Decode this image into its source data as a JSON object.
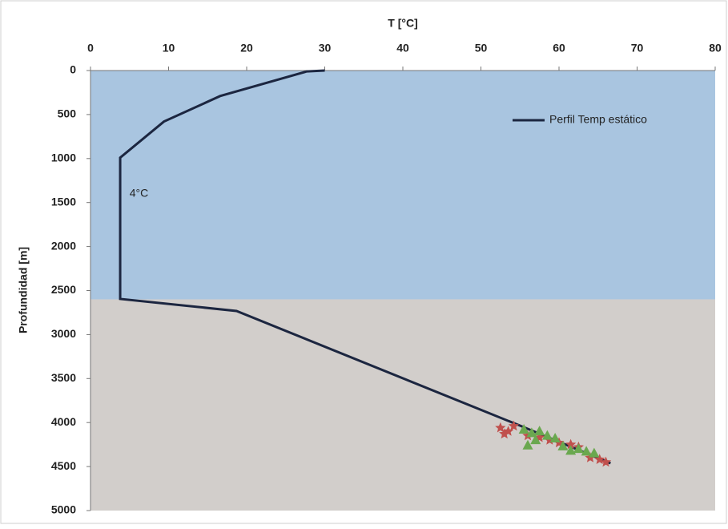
{
  "chart_data": {
    "type": "line",
    "x_label": "T [°C]",
    "y_label": "Profundidad [m]",
    "xlim": [
      0,
      80
    ],
    "xticks": [
      0,
      10,
      20,
      30,
      40,
      50,
      60,
      70,
      80
    ],
    "ylim": [
      0,
      5000
    ],
    "yticks": [
      0,
      500,
      1000,
      1500,
      2000,
      2500,
      3000,
      3500,
      4000,
      4500,
      5000
    ],
    "y_inverted": true,
    "x_axis_position": "top",
    "legend": "top-right",
    "regions": [
      {
        "from": 0,
        "to": 2600,
        "color": "#a9c5e0"
      },
      {
        "from": 2600,
        "to": 5000,
        "color": "#d2cecb"
      }
    ],
    "annotations": [
      {
        "text": "4°C",
        "x": 5,
        "y": 1400
      }
    ],
    "series": [
      {
        "name": "Perfil Temp estático",
        "type": "line",
        "color": "#1c2640",
        "x": [
          30,
          27.7,
          16.6,
          9.4,
          3.8,
          3.8,
          18.7,
          55,
          66.6
        ],
        "y": [
          0,
          10,
          290,
          580,
          990,
          2595,
          2732,
          4035,
          4463
        ]
      },
      {
        "type": "scatter",
        "marker": "star",
        "color": "#c0504d",
        "x": [
          52.5,
          53.5,
          54.2,
          53,
          56,
          57.5,
          58.8,
          60,
          61.5,
          62.5,
          64,
          65.2,
          66
        ],
        "y": [
          4060,
          4100,
          4040,
          4130,
          4150,
          4170,
          4200,
          4230,
          4250,
          4280,
          4400,
          4420,
          4450
        ]
      },
      {
        "type": "scatter",
        "marker": "triangle",
        "color": "#6aa84f",
        "x": [
          55.5,
          56.5,
          57.5,
          58.5,
          57,
          59.5,
          60.5,
          61.5,
          62.5,
          63.5,
          64.5,
          56
        ],
        "y": [
          4080,
          4120,
          4100,
          4150,
          4200,
          4180,
          4270,
          4320,
          4300,
          4330,
          4350,
          4260
        ]
      }
    ]
  }
}
